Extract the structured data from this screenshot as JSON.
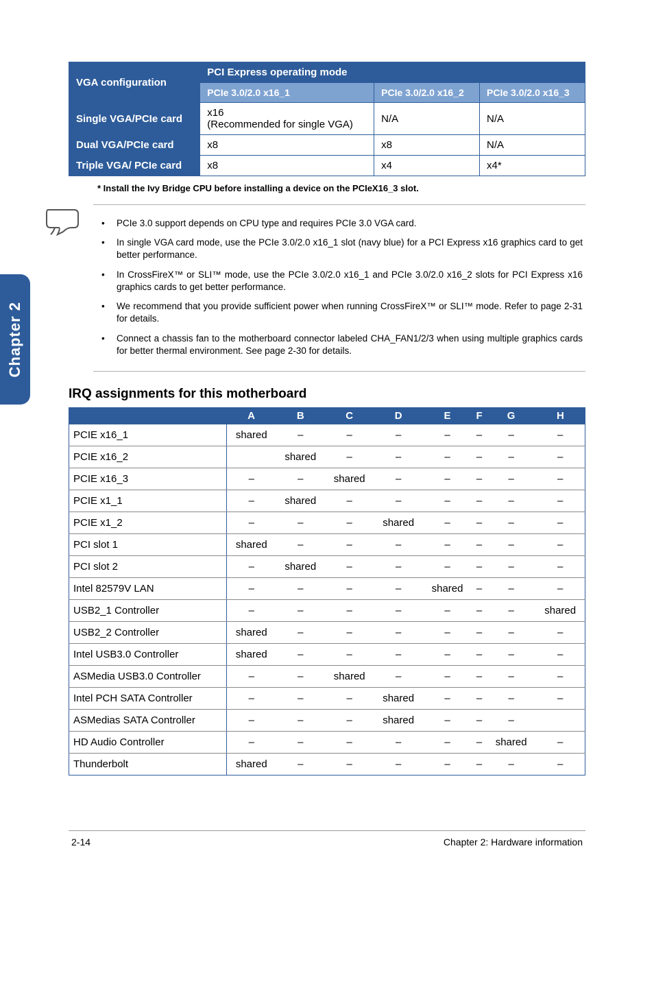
{
  "sideTab": "Chapter 2",
  "table1": {
    "vga_config_label": "VGA configuration",
    "mode_label": "PCI Express operating mode",
    "sub_headers": [
      "PCIe 3.0/2.0 x16_1",
      "PCIe 3.0/2.0 x16_2",
      "PCIe 3.0/2.0 x16_3"
    ],
    "rows": [
      {
        "label": "Single VGA/PCIe card",
        "cells": [
          "x16\n(Recommended for single VGA)",
          "N/A",
          "N/A"
        ]
      },
      {
        "label": "Dual VGA/PCIe card",
        "cells": [
          "x8",
          "x8",
          "N/A"
        ]
      },
      {
        "label": "Triple VGA/ PCIe card",
        "cells": [
          "x8",
          "x4",
          "x4*"
        ]
      }
    ]
  },
  "footnote": "* Install the Ivy Bridge CPU before installing a device on the PCIeX16_3 slot.",
  "notes": [
    "PCIe 3.0 support depends on CPU type and requires PCIe 3.0 VGA card.",
    "In single VGA card mode, use the PCIe 3.0/2.0 x16_1 slot (navy blue) for a PCI Express x16 graphics card to get better performance.",
    "In CrossFireX™ or SLI™ mode, use the PCIe 3.0/2.0 x16_1 and PCIe 3.0/2.0 x16_2 slots for PCI Express x16 graphics cards to get better performance.",
    "We recommend that you provide sufficient power when running CrossFireX™ or SLI™ mode. Refer to page 2-31 for details.",
    "Connect a chassis fan to the motherboard connector labeled CHA_FAN1/2/3 when using multiple graphics cards for better thermal environment. See page 2-30 for details."
  ],
  "irq_heading": "IRQ assignments for this motherboard",
  "table2": {
    "columns": [
      "A",
      "B",
      "C",
      "D",
      "E",
      "F",
      "G",
      "H"
    ],
    "rows": [
      {
        "name": "PCIE x16_1",
        "vals": [
          "shared",
          "–",
          "–",
          "–",
          "–",
          "–",
          "–",
          "–"
        ]
      },
      {
        "name": "PCIE x16_2",
        "vals": [
          "",
          "shared",
          "–",
          "–",
          "–",
          "–",
          "–",
          "–"
        ]
      },
      {
        "name": "PCIE x16_3",
        "vals": [
          "–",
          "–",
          "shared",
          "–",
          "–",
          "–",
          "–",
          "–"
        ]
      },
      {
        "name": "PCIE x1_1",
        "vals": [
          "–",
          "shared",
          "–",
          "–",
          "–",
          "–",
          "–",
          "–"
        ]
      },
      {
        "name": "PCIE x1_2",
        "vals": [
          "–",
          "–",
          "–",
          "shared",
          "–",
          "–",
          "–",
          "–"
        ]
      },
      {
        "name": "PCI slot 1",
        "vals": [
          "shared",
          "–",
          "–",
          "–",
          "–",
          "–",
          "–",
          "–"
        ]
      },
      {
        "name": "PCI slot 2",
        "vals": [
          "–",
          "shared",
          "–",
          "–",
          "–",
          "–",
          "–",
          "–"
        ]
      },
      {
        "name": "Intel 82579V  LAN",
        "vals": [
          "–",
          "–",
          "–",
          "–",
          "shared",
          "–",
          "–",
          "–"
        ]
      },
      {
        "name": "USB2_1 Controller",
        "vals": [
          "–",
          "–",
          "–",
          "–",
          "–",
          "–",
          "–",
          "shared"
        ]
      },
      {
        "name": "USB2_2 Controller",
        "vals": [
          "shared",
          "–",
          "–",
          "–",
          "–",
          "–",
          "–",
          "–"
        ]
      },
      {
        "name": "Intel USB3.0 Controller",
        "vals": [
          "shared",
          "–",
          "–",
          "–",
          "–",
          "–",
          "–",
          "–"
        ]
      },
      {
        "name": "ASMedia USB3.0 Controller",
        "vals": [
          "–",
          "–",
          "shared",
          "–",
          "–",
          "–",
          "–",
          "–"
        ]
      },
      {
        "name": "Intel PCH SATA Controller",
        "vals": [
          "–",
          "–",
          "–",
          "shared",
          "–",
          "–",
          "–",
          "–"
        ]
      },
      {
        "name": "ASMedias SATA Controller",
        "vals": [
          "–",
          "–",
          "–",
          "shared",
          "–",
          "–",
          "–",
          ""
        ]
      },
      {
        "name": "HD Audio Controller",
        "vals": [
          "–",
          "–",
          "–",
          "–",
          "–",
          "–",
          "shared",
          "–"
        ]
      },
      {
        "name": "Thunderbolt",
        "vals": [
          "shared",
          "–",
          "–",
          "–",
          "–",
          "–",
          "–",
          "–"
        ]
      }
    ]
  },
  "footer": {
    "left": "2-14",
    "right": "Chapter 2: Hardware information"
  }
}
